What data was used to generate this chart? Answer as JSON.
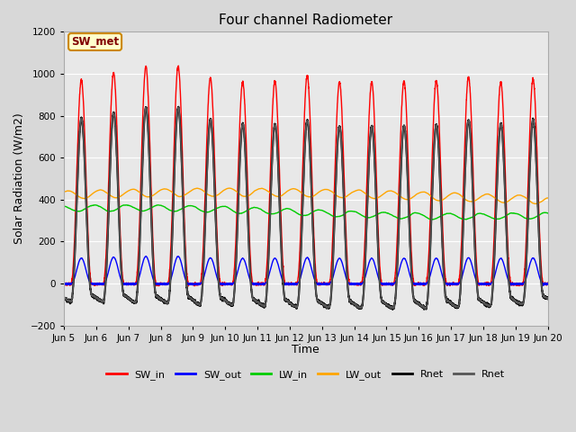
{
  "title": "Four channel Radiometer",
  "xlabel": "Time",
  "ylabel": "Solar Radiation (W/m2)",
  "ylim": [
    -200,
    1200
  ],
  "xlim": [
    0,
    15
  ],
  "yticks": [
    -200,
    0,
    200,
    400,
    600,
    800,
    1000,
    1200
  ],
  "fig_bg": "#d8d8d8",
  "plot_bg": "#e8e8e8",
  "annotation_text": "SW_met",
  "annotation_bg": "#ffffcc",
  "annotation_border": "#cc8800",
  "series": {
    "SW_in": {
      "color": "#ff0000",
      "label": "SW_in",
      "lw": 1.0
    },
    "SW_out": {
      "color": "#0000ff",
      "label": "SW_out",
      "lw": 1.0
    },
    "LW_in": {
      "color": "#00cc00",
      "label": "LW_in",
      "lw": 1.0
    },
    "LW_out": {
      "color": "#ffa500",
      "label": "LW_out",
      "lw": 1.0
    },
    "Rnet1": {
      "color": "#000000",
      "label": "Rnet",
      "lw": 1.5
    },
    "Rnet2": {
      "color": "#555555",
      "label": "Rnet",
      "lw": 1.2
    }
  },
  "n_days": 15,
  "day_start": 5,
  "sw_day_peaks": [
    970,
    1005,
    1035,
    1035,
    980,
    960,
    965,
    990,
    960,
    960,
    965,
    965,
    985,
    960,
    975
  ],
  "sw_night_base": -15,
  "lw_in_base": 340,
  "lw_out_base": 410
}
